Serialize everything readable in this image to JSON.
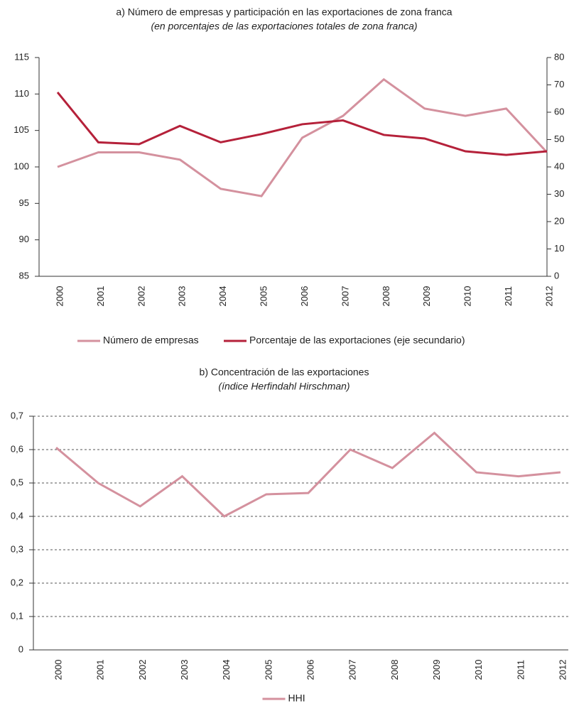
{
  "chart_data": [
    {
      "type": "line",
      "title": "a) Número de empresas y participación en las exportaciones de zona franca",
      "subtitle": "(en porcentajes de las exportaciones totales de zona franca)",
      "categories": [
        "2000",
        "2001",
        "2002",
        "2003",
        "2004",
        "2005",
        "2006",
        "2007",
        "2008",
        "2009",
        "2010",
        "2011",
        "2012"
      ],
      "series": [
        {
          "name": "Número de empresas",
          "color": "#d4919e",
          "values": [
            100,
            102,
            102,
            101,
            97,
            96,
            104,
            107,
            112,
            108,
            107,
            108,
            102
          ]
        },
        {
          "name": "Porcentaje de las exportaciones (eje secundario)",
          "color": "#b5213a",
          "axis": "y2",
          "values": [
            67.3,
            49,
            48.3,
            55,
            49,
            52,
            55.6,
            57,
            51.7,
            50.4,
            45.7,
            44.4,
            45.7
          ]
        }
      ],
      "ylim": [
        85,
        115
      ],
      "yticks": [
        85,
        90,
        95,
        100,
        105,
        110,
        115
      ],
      "y2lim": [
        0,
        80
      ],
      "y2ticks": [
        0,
        10,
        20,
        30,
        40,
        50,
        60,
        70,
        80
      ],
      "grid": false,
      "legend": "bottom"
    },
    {
      "type": "line",
      "title": "b) Concentración de las exportaciones",
      "subtitle": "(índice Herfindahl Hirschman)",
      "categories": [
        "2000",
        "2001",
        "2002",
        "2003",
        "2004",
        "2005",
        "2006",
        "2007",
        "2008",
        "2009",
        "2010",
        "2011",
        "2012"
      ],
      "series": [
        {
          "name": "HHI",
          "color": "#d4919e",
          "values": [
            0.606,
            0.5,
            0.43,
            0.52,
            0.4,
            0.466,
            0.47,
            0.6,
            0.545,
            0.65,
            0.532,
            0.52,
            0.532
          ]
        }
      ],
      "ylim": [
        0,
        0.7
      ],
      "yticks": [
        0,
        {
          "value": 0.1,
          "label": "0,1"
        },
        {
          "value": 0.2,
          "label": "0,2"
        },
        {
          "value": 0.3,
          "label": "0,3"
        },
        {
          "value": 0.4,
          "label": "0,4"
        },
        {
          "value": 0.5,
          "label": "0,5"
        },
        {
          "value": 0.6,
          "label": "0,6"
        },
        {
          "value": 0.7,
          "label": "0,7"
        }
      ],
      "grid": true,
      "legend": "bottom"
    }
  ]
}
